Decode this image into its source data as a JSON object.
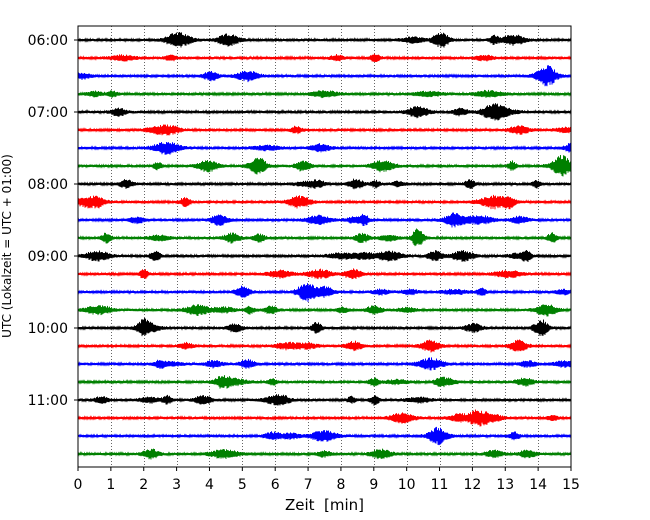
{
  "chart_data": {
    "type": "line",
    "title": "",
    "xlabel": "Zeit  [min]",
    "ylabel": "UTC (Lokalzeit = UTC + 01:00)",
    "xlim": [
      0,
      15
    ],
    "x_ticks": [
      0,
      1,
      2,
      3,
      4,
      5,
      6,
      7,
      8,
      9,
      10,
      11,
      12,
      13,
      14,
      15
    ],
    "x_tick_labels": [
      "0",
      "1",
      "2",
      "3",
      "4",
      "5",
      "6",
      "7",
      "8",
      "9",
      "10",
      "11",
      "12",
      "13",
      "14",
      "15"
    ],
    "y_tick_labels": [
      "06:00",
      "07:00",
      "08:00",
      "09:00",
      "10:00",
      "11:00"
    ],
    "grid": "vertical dotted lines at each minute",
    "trace_colors": [
      "#000000",
      "#ff0000",
      "#0000ff",
      "#008000"
    ],
    "traces": [
      {
        "start": "06:00"
      },
      {
        "start": "06:15"
      },
      {
        "start": "06:30"
      },
      {
        "start": "06:45"
      },
      {
        "start": "07:00"
      },
      {
        "start": "07:15"
      },
      {
        "start": "07:30"
      },
      {
        "start": "07:45"
      },
      {
        "start": "08:00"
      },
      {
        "start": "08:15"
      },
      {
        "start": "08:30"
      },
      {
        "start": "08:45"
      },
      {
        "start": "09:00"
      },
      {
        "start": "09:15"
      },
      {
        "start": "09:30"
      },
      {
        "start": "09:45"
      },
      {
        "start": "10:00"
      },
      {
        "start": "10:15"
      },
      {
        "start": "10:30"
      },
      {
        "start": "10:45"
      },
      {
        "start": "11:00"
      },
      {
        "start": "11:15"
      },
      {
        "start": "11:30"
      },
      {
        "start": "11:45"
      }
    ]
  }
}
